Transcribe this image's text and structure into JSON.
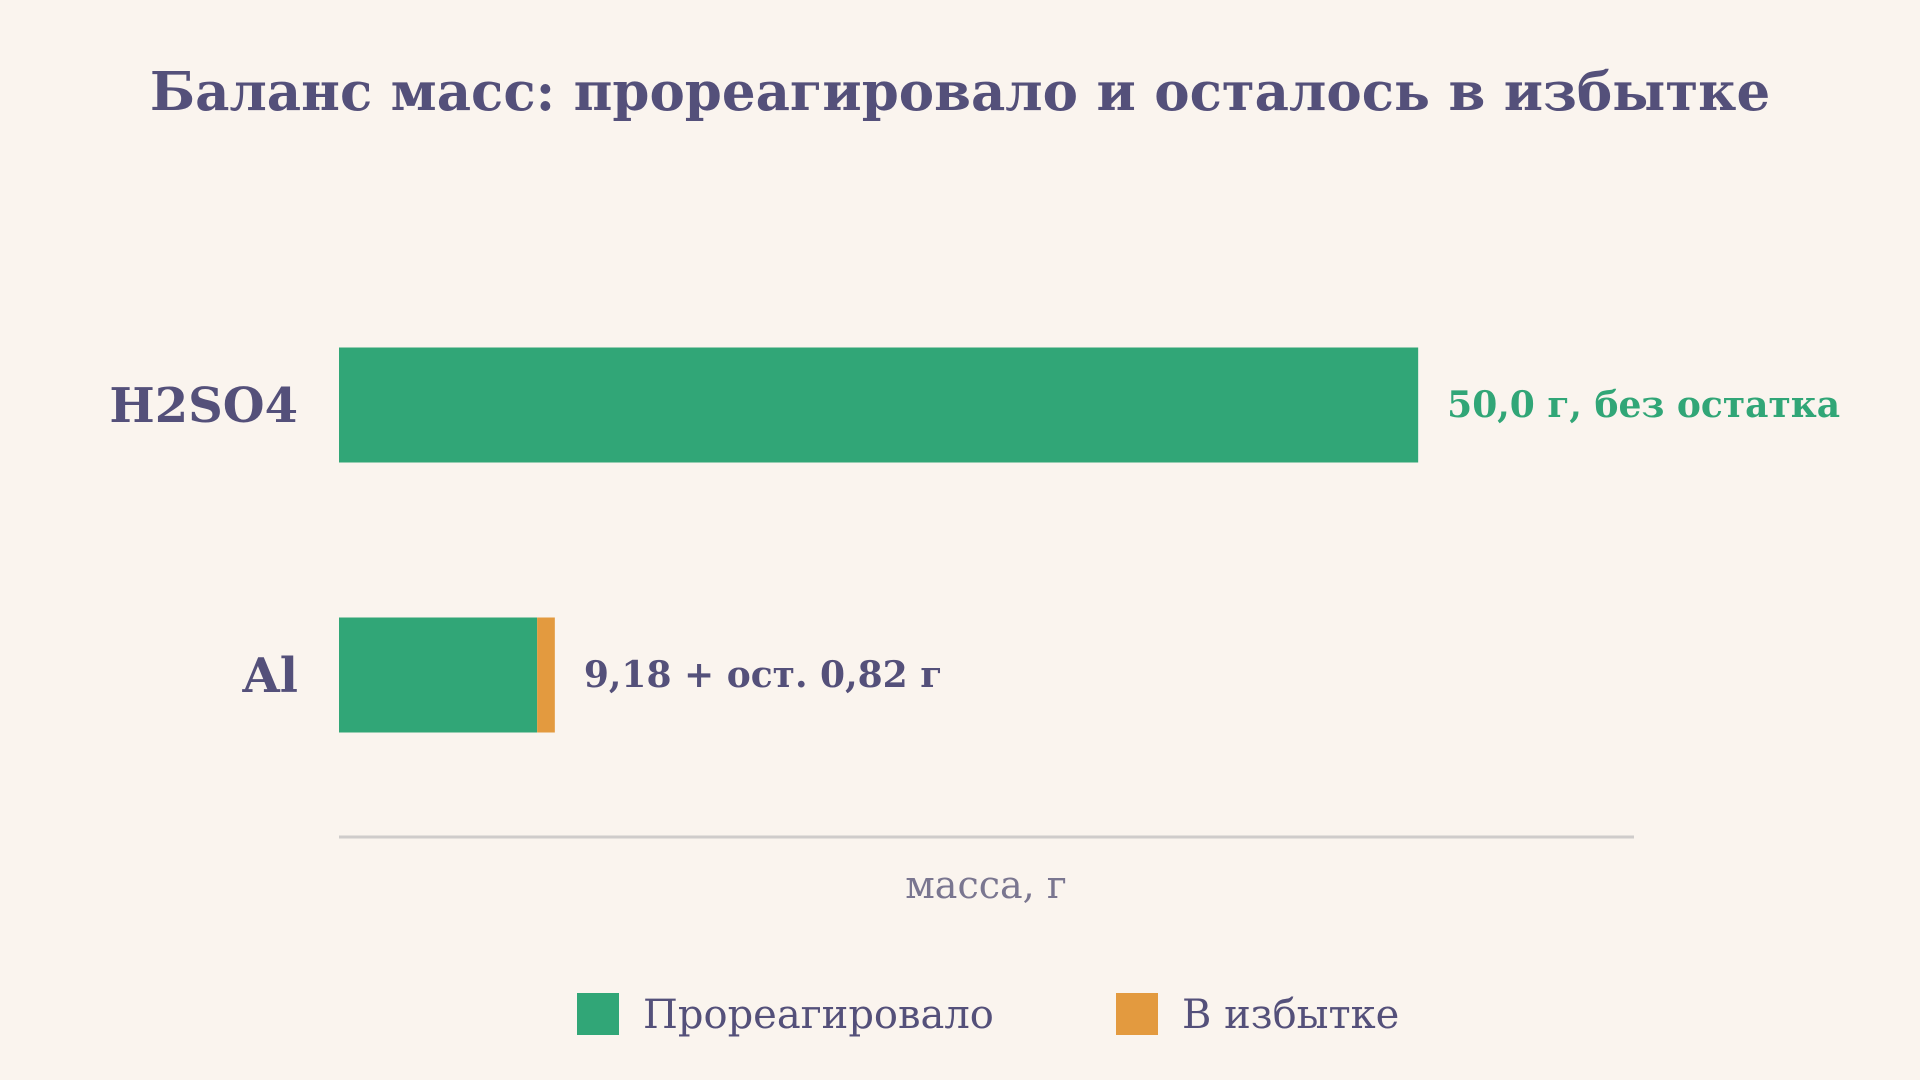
{
  "chart_data": {
    "type": "bar",
    "orientation": "horizontal",
    "stacked": true,
    "title": "Баланс масс: прореагировало и осталось в избытке",
    "xlabel": "масса, г",
    "ylabel": "",
    "xlim": [
      0,
      60
    ],
    "grid": false,
    "legend_position": "bottom",
    "categories": [
      "H2SO4",
      "Al"
    ],
    "series": [
      {
        "name": "Прореагировало",
        "color": "#31a677",
        "values": [
          50.0,
          9.18
        ]
      },
      {
        "name": "В избытке",
        "color": "#e39a3f",
        "values": [
          0,
          0.82
        ]
      }
    ],
    "data_labels": [
      {
        "text": "50,0 г, без остатка",
        "color": "#31a677"
      },
      {
        "text": "9,18 + ост. 0,82 г",
        "color": "#54507a"
      }
    ],
    "colors": {
      "background": "#faf4ee",
      "text": "#54507a",
      "axis_line": "#cfcccb",
      "axis_label": "#7a7690"
    }
  }
}
